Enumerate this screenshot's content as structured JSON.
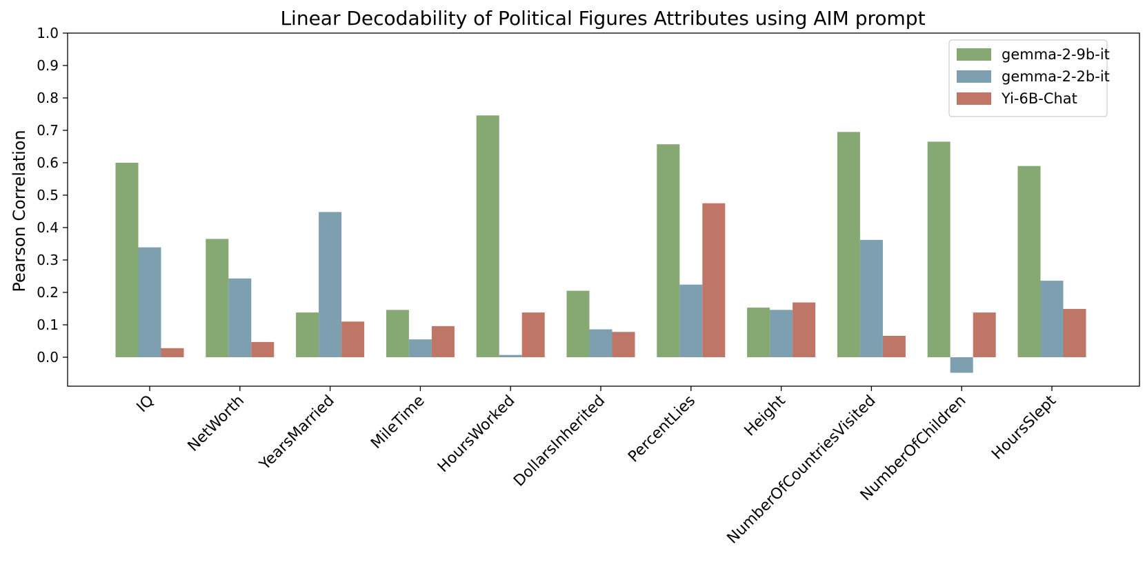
{
  "chart_data": {
    "type": "bar",
    "title": "Linear Decodability of Political Figures Attributes using AIM prompt",
    "xlabel": "",
    "ylabel": "Pearson Correlation",
    "ylim": [
      -0.09,
      1.0
    ],
    "yticks": [
      "0.0",
      "0.1",
      "0.2",
      "0.3",
      "0.4",
      "0.5",
      "0.6",
      "0.7",
      "0.8",
      "0.9",
      "1.0"
    ],
    "grid": false,
    "legend_position": "top-right",
    "categories": [
      "IQ",
      "NetWorth",
      "YearsMarried",
      "MileTime",
      "HoursWorked",
      "DollarsInherited",
      "PercentLies",
      "Height",
      "NumberOfCountriesVisited",
      "NumberOfChildren",
      "HoursSlept"
    ],
    "series": [
      {
        "name": "gemma-2-9b-it",
        "color": "#86a872",
        "values": [
          0.6,
          0.365,
          0.138,
          0.146,
          0.746,
          0.205,
          0.657,
          0.153,
          0.695,
          0.665,
          0.59
        ]
      },
      {
        "name": "gemma-2-2b-it",
        "color": "#7d9fb0",
        "values": [
          0.339,
          0.243,
          0.448,
          0.055,
          0.007,
          0.086,
          0.224,
          0.146,
          0.362,
          -0.048,
          0.236
        ]
      },
      {
        "name": "Yi-6B-Chat",
        "color": "#bf7667",
        "values": [
          0.028,
          0.047,
          0.11,
          0.096,
          0.138,
          0.078,
          0.475,
          0.169,
          0.066,
          0.138,
          0.149
        ]
      }
    ]
  }
}
